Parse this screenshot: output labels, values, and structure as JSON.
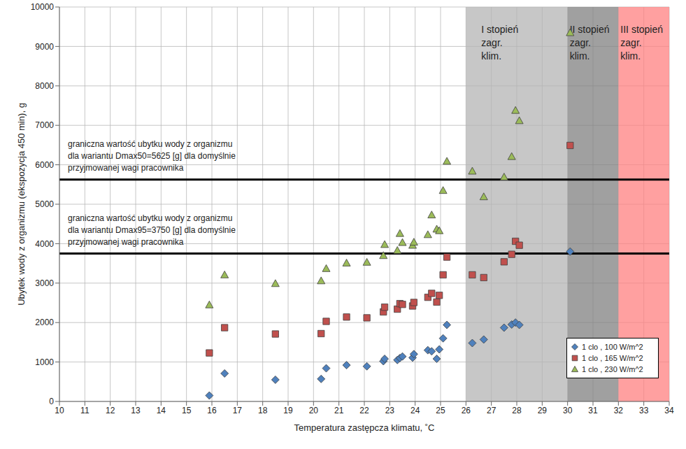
{
  "chart_data": {
    "type": "scatter",
    "x_label": "Temperatura zastępcza klimatu, ˚C",
    "y_label": "Ubytek wody z organizmu (ekspozycja 450 min), g",
    "x": [
      15.9,
      16.5,
      18.5,
      20.3,
      20.5,
      21.3,
      22.1,
      22.75,
      22.8,
      23.3,
      23.4,
      23.5,
      23.9,
      23.95,
      24.5,
      24.65,
      24.85,
      24.95,
      25.1,
      25.25,
      26.25,
      26.7,
      27.5,
      27.8,
      27.95,
      28.1,
      30.1
    ],
    "series": [
      {
        "name": "1 clo , 100 W/m^2",
        "color": "#4f81bd",
        "marker": "diamond",
        "values": [
          150,
          710,
          550,
          570,
          840,
          920,
          890,
          1020,
          1080,
          1050,
          1100,
          1140,
          1110,
          1200,
          1300,
          1270,
          1080,
          1320,
          1600,
          1940,
          1480,
          1570,
          1870,
          1950,
          2000,
          1940,
          3800
        ]
      },
      {
        "name": "1 clo , 165 W/m^2",
        "color": "#c0504d",
        "marker": "square",
        "values": [
          1230,
          1870,
          1710,
          1720,
          2030,
          2140,
          2120,
          2270,
          2390,
          2340,
          2480,
          2460,
          2420,
          2510,
          2640,
          2740,
          2520,
          2690,
          3210,
          3660,
          3210,
          3140,
          3540,
          3730,
          4060,
          3960,
          6490
        ]
      },
      {
        "name": "1 clo , 230 W/m^2",
        "color": "#9bbb59",
        "marker": "triangle",
        "values": [
          2450,
          3210,
          2990,
          3060,
          3370,
          3510,
          3530,
          3700,
          3980,
          3830,
          4260,
          4030,
          3960,
          4040,
          4230,
          4730,
          4370,
          4330,
          5350,
          6090,
          5840,
          5190,
          5690,
          6210,
          7380,
          7120,
          9350
        ]
      }
    ],
    "xlim": [
      10,
      34
    ],
    "xticks": [
      10,
      11,
      12,
      13,
      14,
      15,
      16,
      17,
      18,
      19,
      20,
      21,
      22,
      23,
      24,
      25,
      26,
      27,
      28,
      29,
      30,
      31,
      32,
      33,
      34
    ],
    "ylim": [
      0,
      10000
    ],
    "yticks": [
      0,
      1000,
      2000,
      3000,
      4000,
      5000,
      6000,
      7000,
      8000,
      9000,
      10000
    ],
    "grid": true,
    "legend": "lower right",
    "zones": [
      {
        "from": 26,
        "to": 30,
        "color": "#b4b4b4",
        "label": [
          "I stopień",
          "zagr.",
          "klim."
        ]
      },
      {
        "from": 30,
        "to": 32,
        "color": "#808080",
        "label": [
          "II stopień",
          "zagr.",
          "klim."
        ]
      },
      {
        "from": 32,
        "to": 34,
        "color": "#ff8080",
        "label": [
          "III stopień",
          "zagr.",
          "klim."
        ]
      }
    ],
    "thresholds": [
      {
        "y": 5625,
        "label": [
          "graniczna wartość ubytku wody z organizmu",
          "dla wariantu Dmax50=5625 [g] dla domyślnie",
          "przyjmowanej wagi pracownika"
        ]
      },
      {
        "y": 3750,
        "label": [
          "graniczna wartość ubytku wody z organizmu",
          "dla wariantu Dmax95=3750 [g] dla domyślnie",
          "przyjmowanej wagi pracownika"
        ]
      }
    ]
  }
}
